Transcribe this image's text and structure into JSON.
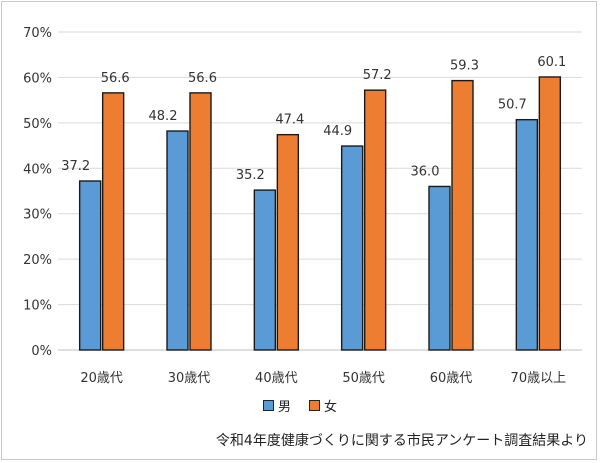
{
  "chart_data": {
    "type": "bar",
    "categories": [
      "20歳代",
      "30歳代",
      "40歳代",
      "50歳代",
      "60歳代",
      "70歳以上"
    ],
    "series": [
      {
        "name": "男",
        "values": [
          37.2,
          48.2,
          35.2,
          44.9,
          36.0,
          50.7
        ],
        "color": "#5b9bd5",
        "labels": [
          "37.2",
          "48.2",
          "35.2",
          "44.9",
          "36.0",
          "50.7"
        ]
      },
      {
        "name": "女",
        "values": [
          56.6,
          56.6,
          47.4,
          57.2,
          59.3,
          60.1
        ],
        "color": "#ed7d31",
        "labels": [
          "56.6",
          "56.6",
          "47.4",
          "57.2",
          "59.3",
          "60.1"
        ]
      }
    ],
    "ylim": [
      0,
      70
    ],
    "yticks": [
      "0%",
      "10%",
      "20%",
      "30%",
      "40%",
      "50%",
      "60%",
      "70%"
    ],
    "grid": true,
    "legend_position": "bottom",
    "source_note": "令和4年度健康づくりに関する市民アンケート調査結果より"
  }
}
